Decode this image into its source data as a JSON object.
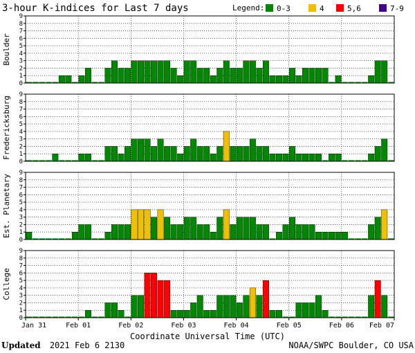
{
  "title": "3-hour K-indices for Last 7 days",
  "legend": {
    "label": "Legend:",
    "items": [
      {
        "label": "0-3",
        "color": "#008800"
      },
      {
        "label": "4",
        "color": "#f0c000"
      },
      {
        "label": "5,6",
        "color": "#ff0000"
      },
      {
        "label": "7-9",
        "color": "#440088"
      }
    ]
  },
  "xlabel": "Coordinate Universal Time (UTC)",
  "footer": {
    "updated_label": "Updated",
    "updated_value": "2021 Feb  6 2130",
    "source": "NOAA/SWPC Boulder, CO USA"
  },
  "chart_data": {
    "type": "bar",
    "ylim": [
      0,
      9
    ],
    "yticks": [
      "0",
      "1",
      "2",
      "3",
      "4",
      "5",
      "6",
      "7",
      "8",
      "9"
    ],
    "x_ticks": [
      "Jan 31",
      "Feb 01",
      "Feb 02",
      "Feb 03",
      "Feb 04",
      "Feb 05",
      "Feb 06",
      "Feb 07"
    ],
    "bins_per_day": 8,
    "grid": true,
    "panels": [
      {
        "name": "Boulder",
        "values": [
          0,
          0,
          0,
          0,
          0,
          1,
          1,
          0,
          1,
          2,
          0,
          0,
          2,
          3,
          2,
          2,
          3,
          3,
          3,
          3,
          3,
          3,
          2,
          1,
          3,
          3,
          2,
          2,
          1,
          2,
          3,
          2,
          2,
          3,
          3,
          2,
          3,
          1,
          1,
          1,
          2,
          1,
          2,
          2,
          2,
          2,
          0,
          1,
          0,
          0,
          0,
          0,
          1,
          3,
          3,
          0
        ]
      },
      {
        "name": "Fredericksburg",
        "values": [
          0,
          0,
          0,
          0,
          1,
          0,
          0,
          0,
          1,
          1,
          0,
          0,
          2,
          2,
          1,
          2,
          3,
          3,
          3,
          2,
          3,
          2,
          2,
          1,
          2,
          3,
          2,
          2,
          1,
          2,
          4,
          2,
          2,
          2,
          3,
          2,
          2,
          1,
          1,
          1,
          2,
          1,
          1,
          1,
          1,
          0,
          1,
          1,
          0,
          0,
          0,
          0,
          1,
          2,
          3,
          0
        ]
      },
      {
        "name": "Est. Planetary",
        "values": [
          1,
          0,
          0,
          0,
          0,
          0,
          0,
          1,
          2,
          2,
          0,
          0,
          1,
          2,
          2,
          2,
          4,
          4,
          4,
          3,
          4,
          3,
          2,
          2,
          3,
          3,
          2,
          2,
          1,
          3,
          4,
          2,
          3,
          3,
          3,
          2,
          2,
          0,
          1,
          2,
          3,
          2,
          2,
          2,
          1,
          1,
          1,
          1,
          1,
          0,
          0,
          0,
          2,
          3,
          4,
          0
        ]
      },
      {
        "name": "College",
        "values": [
          0,
          0,
          0,
          0,
          0,
          0,
          0,
          0,
          0,
          1,
          0,
          0,
          2,
          2,
          1,
          0,
          3,
          3,
          6,
          6,
          5,
          5,
          1,
          1,
          1,
          2,
          3,
          1,
          1,
          3,
          3,
          3,
          2,
          3,
          4,
          3,
          5,
          1,
          1,
          0,
          0,
          2,
          2,
          2,
          3,
          1,
          0,
          0,
          0,
          0,
          0,
          0,
          3,
          5,
          3,
          0
        ]
      }
    ]
  }
}
